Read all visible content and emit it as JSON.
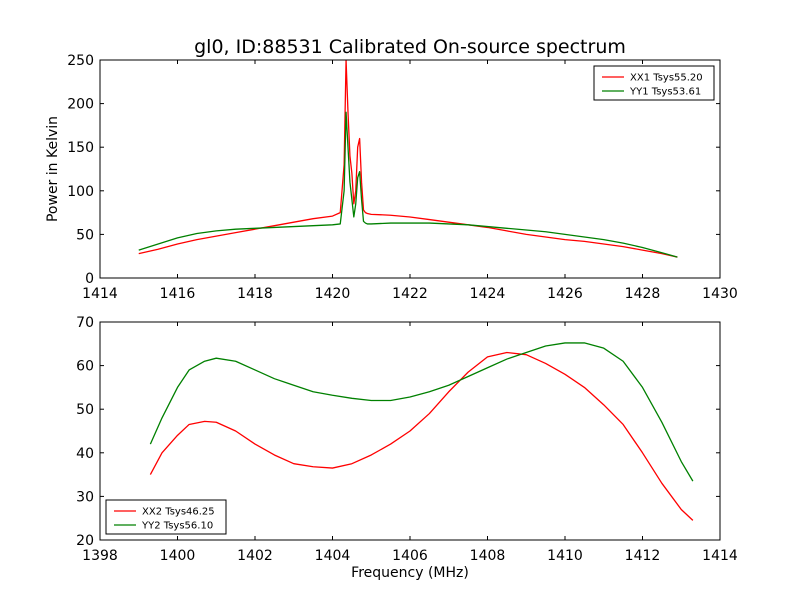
{
  "title": "gl0, ID:88531 Calibrated On-source spectrum",
  "chart_data": [
    {
      "type": "line",
      "xlim": [
        1414,
        1430
      ],
      "ylim": [
        0,
        250
      ],
      "xticks": [
        1414,
        1416,
        1418,
        1420,
        1422,
        1424,
        1426,
        1428,
        1430
      ],
      "yticks": [
        0,
        50,
        100,
        150,
        200,
        250
      ],
      "xlabel": "",
      "ylabel": "Power in Kelvin",
      "grid": false,
      "legend_position": "top-right",
      "series": [
        {
          "name": "XX1 Tsys55.20",
          "color": "#ff0000",
          "x": [
            1415.0,
            1415.5,
            1416.0,
            1416.5,
            1417.0,
            1417.5,
            1418.0,
            1418.5,
            1419.0,
            1419.5,
            1420.0,
            1420.2,
            1420.3,
            1420.35,
            1420.4,
            1420.45,
            1420.5,
            1420.55,
            1420.6,
            1420.65,
            1420.7,
            1420.75,
            1420.8,
            1420.85,
            1420.9,
            1421.0,
            1421.5,
            1422.0,
            1422.5,
            1423.0,
            1423.5,
            1424.0,
            1424.5,
            1425.0,
            1425.5,
            1426.0,
            1426.5,
            1427.0,
            1427.5,
            1428.0,
            1428.5,
            1428.9
          ],
          "values": [
            28,
            33,
            39,
            44,
            48,
            52,
            56,
            60,
            64,
            68,
            71,
            75,
            130,
            250,
            190,
            140,
            120,
            85,
            100,
            150,
            160,
            110,
            78,
            75,
            74,
            73,
            72,
            70,
            67,
            64,
            61,
            58,
            54,
            50,
            47,
            44,
            42,
            39,
            36,
            32,
            28,
            24
          ]
        },
        {
          "name": "YY1 Tsys53.61",
          "color": "#008000",
          "x": [
            1415.0,
            1415.5,
            1416.0,
            1416.5,
            1417.0,
            1417.5,
            1418.0,
            1418.5,
            1419.0,
            1419.5,
            1420.0,
            1420.2,
            1420.3,
            1420.35,
            1420.4,
            1420.45,
            1420.5,
            1420.55,
            1420.6,
            1420.65,
            1420.7,
            1420.75,
            1420.8,
            1420.85,
            1420.9,
            1421.0,
            1421.5,
            1422.0,
            1422.5,
            1423.0,
            1423.5,
            1424.0,
            1424.5,
            1425.0,
            1425.5,
            1426.0,
            1426.5,
            1427.0,
            1427.5,
            1428.0,
            1428.5,
            1428.9
          ],
          "values": [
            32,
            39,
            46,
            51,
            54,
            56,
            57,
            58,
            59,
            60,
            61,
            62,
            100,
            190,
            150,
            110,
            90,
            70,
            85,
            115,
            122,
            90,
            65,
            63,
            62,
            62,
            63,
            63,
            63,
            62,
            61,
            59,
            57,
            55,
            53,
            50,
            47,
            44,
            40,
            35,
            29,
            24
          ]
        }
      ]
    },
    {
      "type": "line",
      "xlim": [
        1398,
        1414
      ],
      "ylim": [
        20,
        70
      ],
      "xticks": [
        1398,
        1400,
        1402,
        1404,
        1406,
        1408,
        1410,
        1412,
        1414
      ],
      "yticks": [
        20,
        30,
        40,
        50,
        60,
        70
      ],
      "xlabel": "Frequency (MHz)",
      "ylabel": "",
      "grid": false,
      "legend_position": "bottom-left",
      "series": [
        {
          "name": "XX2 Tsys46.25",
          "color": "#ff0000",
          "x": [
            1399.3,
            1399.6,
            1400.0,
            1400.3,
            1400.7,
            1401.0,
            1401.5,
            1402.0,
            1402.5,
            1403.0,
            1403.5,
            1404.0,
            1404.5,
            1405.0,
            1405.5,
            1406.0,
            1406.5,
            1407.0,
            1407.5,
            1408.0,
            1408.5,
            1409.0,
            1409.5,
            1410.0,
            1410.5,
            1411.0,
            1411.5,
            1412.0,
            1412.5,
            1413.0,
            1413.3
          ],
          "values": [
            35,
            40,
            44,
            46.5,
            47.2,
            47,
            45,
            42,
            39.5,
            37.5,
            36.8,
            36.5,
            37.5,
            39.5,
            42,
            45,
            49,
            54,
            58.5,
            62,
            63,
            62.5,
            60.5,
            58,
            55,
            51,
            46.5,
            40,
            33,
            27,
            24.5
          ]
        },
        {
          "name": "YY2 Tsys56.10",
          "color": "#008000",
          "x": [
            1399.3,
            1399.6,
            1400.0,
            1400.3,
            1400.7,
            1401.0,
            1401.5,
            1402.0,
            1402.5,
            1403.0,
            1403.5,
            1404.0,
            1404.5,
            1405.0,
            1405.5,
            1406.0,
            1406.5,
            1407.0,
            1407.5,
            1408.0,
            1408.5,
            1409.0,
            1409.5,
            1410.0,
            1410.5,
            1411.0,
            1411.5,
            1412.0,
            1412.5,
            1413.0,
            1413.3
          ],
          "values": [
            42,
            48,
            55,
            59,
            61,
            61.7,
            61,
            59,
            57,
            55.5,
            54,
            53.2,
            52.5,
            52,
            52,
            52.8,
            54,
            55.5,
            57.5,
            59.5,
            61.5,
            63,
            64.5,
            65.2,
            65.2,
            64,
            61,
            55,
            47,
            38,
            33.5
          ]
        }
      ]
    }
  ]
}
